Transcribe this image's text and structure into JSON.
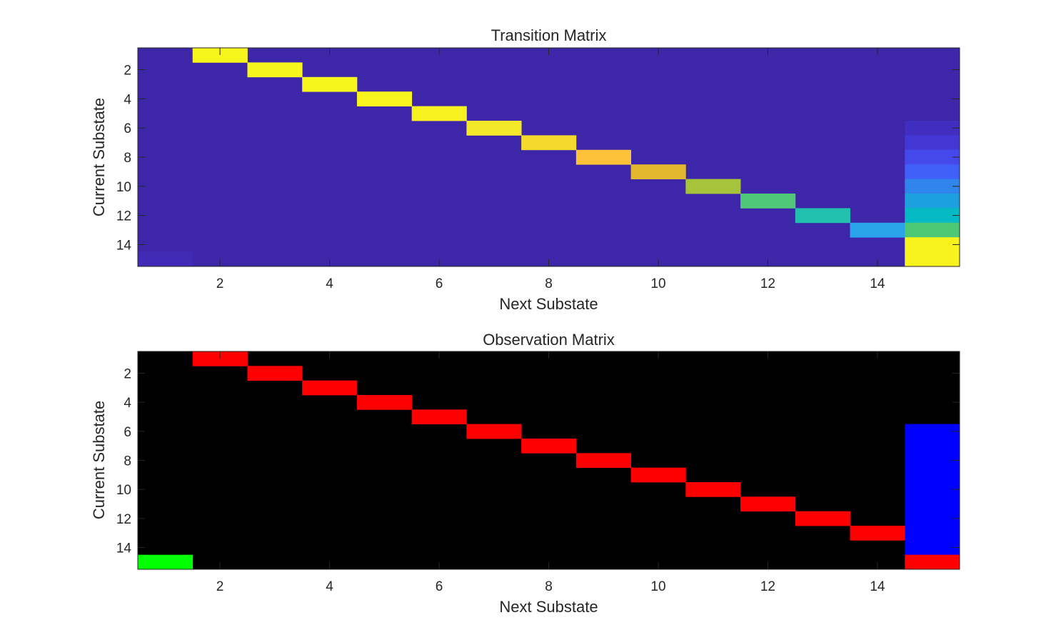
{
  "chart_data": [
    {
      "type": "heatmap",
      "title": "Transition Matrix",
      "xlabel": "Next Substate",
      "ylabel": "Current Substate",
      "rows": 15,
      "cols": 15,
      "xlim": [
        0.5,
        15.5
      ],
      "ylim": [
        0.5,
        15.5
      ],
      "y_reversed": true,
      "xticks": [
        2,
        4,
        6,
        8,
        10,
        12,
        14
      ],
      "yticks": [
        2,
        4,
        6,
        8,
        10,
        12,
        14
      ],
      "colormap": "parula",
      "background_color": "#3E26A8",
      "cells": [
        {
          "row": 1,
          "col": 2,
          "color": "#F7F61C"
        },
        {
          "row": 2,
          "col": 3,
          "color": "#F7F61C"
        },
        {
          "row": 3,
          "col": 4,
          "color": "#F7F61C"
        },
        {
          "row": 4,
          "col": 5,
          "color": "#F7F51D"
        },
        {
          "row": 5,
          "col": 6,
          "color": "#F6F11F"
        },
        {
          "row": 6,
          "col": 7,
          "color": "#F3E82A"
        },
        {
          "row": 7,
          "col": 8,
          "color": "#F5DA2E"
        },
        {
          "row": 8,
          "col": 9,
          "color": "#FEC23A"
        },
        {
          "row": 9,
          "col": 10,
          "color": "#E2B82E"
        },
        {
          "row": 10,
          "col": 11,
          "color": "#A6C43B"
        },
        {
          "row": 11,
          "col": 12,
          "color": "#50C878"
        },
        {
          "row": 12,
          "col": 13,
          "color": "#22C0AE"
        },
        {
          "row": 13,
          "col": 14,
          "color": "#2AA5EC"
        },
        {
          "row": 6,
          "col": 15,
          "color": "#412DC0"
        },
        {
          "row": 7,
          "col": 15,
          "color": "#4337D6"
        },
        {
          "row": 8,
          "col": 15,
          "color": "#4548EB"
        },
        {
          "row": 9,
          "col": 15,
          "color": "#4060F9"
        },
        {
          "row": 10,
          "col": 15,
          "color": "#2F85EC"
        },
        {
          "row": 11,
          "col": 15,
          "color": "#1DA1DE"
        },
        {
          "row": 12,
          "col": 15,
          "color": "#06BAC4"
        },
        {
          "row": 13,
          "col": 15,
          "color": "#4DC875"
        },
        {
          "row": 14,
          "col": 15,
          "color": "#F6F31D"
        },
        {
          "row": 15,
          "col": 15,
          "color": "#F6F31D"
        },
        {
          "row": 15,
          "col": 1,
          "color": "#412BB6"
        }
      ]
    },
    {
      "type": "heatmap",
      "title": "Observation Matrix",
      "xlabel": "Next Substate",
      "ylabel": "Current Substate",
      "rows": 15,
      "cols": 15,
      "xlim": [
        0.5,
        15.5
      ],
      "ylim": [
        0.5,
        15.5
      ],
      "y_reversed": true,
      "xticks": [
        2,
        4,
        6,
        8,
        10,
        12,
        14
      ],
      "yticks": [
        2,
        4,
        6,
        8,
        10,
        12,
        14
      ],
      "background_color": "#000000",
      "cells": [
        {
          "row": 1,
          "col": 2,
          "color": "#FF0000"
        },
        {
          "row": 2,
          "col": 3,
          "color": "#FF0000"
        },
        {
          "row": 3,
          "col": 4,
          "color": "#FF0000"
        },
        {
          "row": 4,
          "col": 5,
          "color": "#FF0000"
        },
        {
          "row": 5,
          "col": 6,
          "color": "#FF0000"
        },
        {
          "row": 6,
          "col": 7,
          "color": "#FF0000"
        },
        {
          "row": 7,
          "col": 8,
          "color": "#FF0000"
        },
        {
          "row": 8,
          "col": 9,
          "color": "#FF0000"
        },
        {
          "row": 9,
          "col": 10,
          "color": "#FF0000"
        },
        {
          "row": 10,
          "col": 11,
          "color": "#FF0000"
        },
        {
          "row": 11,
          "col": 12,
          "color": "#FF0000"
        },
        {
          "row": 12,
          "col": 13,
          "color": "#FF0000"
        },
        {
          "row": 13,
          "col": 14,
          "color": "#FF0000"
        },
        {
          "row": 6,
          "col": 15,
          "color": "#0000FF"
        },
        {
          "row": 7,
          "col": 15,
          "color": "#0000FF"
        },
        {
          "row": 8,
          "col": 15,
          "color": "#0000FF"
        },
        {
          "row": 9,
          "col": 15,
          "color": "#0000FF"
        },
        {
          "row": 10,
          "col": 15,
          "color": "#0000FF"
        },
        {
          "row": 11,
          "col": 15,
          "color": "#0000FF"
        },
        {
          "row": 12,
          "col": 15,
          "color": "#0000FF"
        },
        {
          "row": 13,
          "col": 15,
          "color": "#0000FF"
        },
        {
          "row": 14,
          "col": 15,
          "color": "#0000FF"
        },
        {
          "row": 15,
          "col": 15,
          "color": "#FF0000"
        },
        {
          "row": 15,
          "col": 1,
          "color": "#00FF00"
        }
      ]
    }
  ],
  "axis_color": "#262626"
}
